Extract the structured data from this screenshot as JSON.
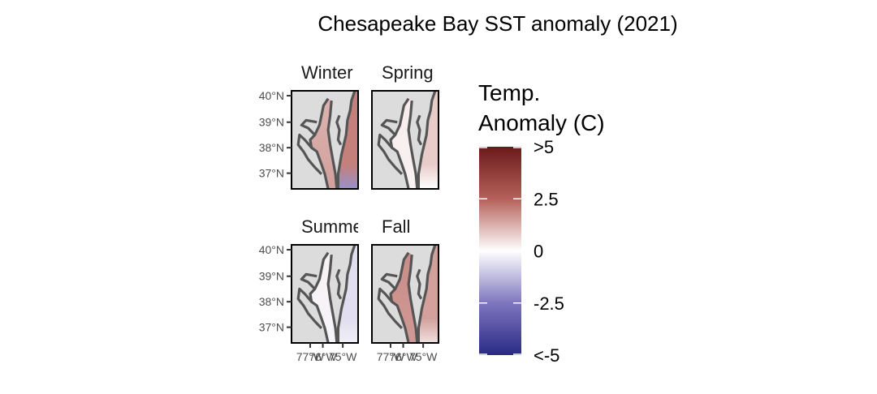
{
  "title": "Chesapeake Bay SST anomaly (2021)",
  "panels": [
    {
      "label": "Winter",
      "anomaly": {
        "upper_bay": 1.2,
        "mid_bay": 1.5,
        "ocean": 2.0,
        "southeast_corner": -2.0
      }
    },
    {
      "label": "Spring",
      "anomaly": {
        "upper_bay": 0.3,
        "mid_bay": 0.2,
        "ocean": 0.8,
        "southeast_corner": 0.0
      }
    },
    {
      "label": "Summer",
      "anomaly": {
        "upper_bay": 0.2,
        "mid_bay": -0.2,
        "ocean": -0.6,
        "southeast_corner": -0.3
      }
    },
    {
      "label": "Fall",
      "anomaly": {
        "upper_bay": 1.8,
        "mid_bay": 1.6,
        "ocean": 1.5,
        "southeast_corner": 0.5
      }
    }
  ],
  "axes": {
    "y_ticks": [
      "40°N",
      "39°N",
      "38°N",
      "37°N"
    ],
    "x_ticks": [
      "77°W",
      "76°W",
      "75°W"
    ]
  },
  "legend": {
    "title_line1": "Temp.",
    "title_line2": "Anomaly (C)",
    "labels": [
      ">5",
      "2.5",
      "0",
      "-2.5",
      "<-5"
    ],
    "colors": {
      "high": "#6b1a1a",
      "mid": "#ffffff",
      "low": "#2a2a86"
    }
  },
  "colors": {
    "land": "#dcdcdc",
    "coast": "#555555",
    "frame": "#000000"
  }
}
